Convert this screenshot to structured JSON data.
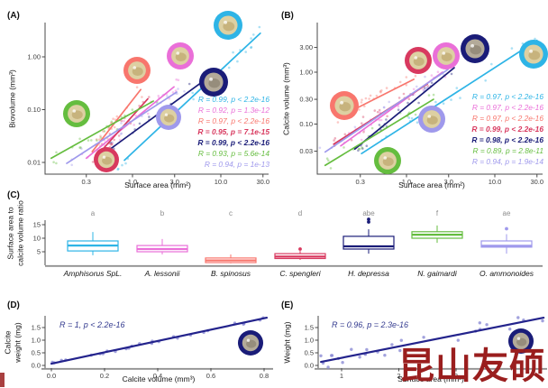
{
  "panel_labels": {
    "A": "(A)",
    "B": "(B)",
    "C": "(C)",
    "D": "(D)",
    "E": "(E)"
  },
  "watermark": {
    "text": "昆山友硕",
    "color": "#9a1e1e"
  },
  "palette": {
    "cyan": "#2eb4e6",
    "pink": "#ea6fd8",
    "salmon": "#f8766d",
    "red": "#d8395f",
    "navy": "#1a1c78",
    "green": "#65bd3f",
    "purple": "#9f99ec",
    "point_blue": "#8b8bd4",
    "fit_navy": "#23238c",
    "annotation": "#333a8f",
    "axis": "#4a4a4a",
    "baseline_gray": "#909090",
    "letter_gray": "#8c8c8c"
  },
  "chart_data": [
    {
      "id": "A",
      "type": "scatter",
      "xscale": "log",
      "yscale": "log",
      "xlabel": "Surface area (mm²)",
      "ylabel": "Biovolume (mm³)",
      "xticks": [
        "0.3",
        "1.0",
        "3.0",
        "10.0",
        "30.0"
      ],
      "yticks": [
        "1.00",
        "0.10",
        "0.01"
      ],
      "series": [
        {
          "species": "Amphisorus SpL.",
          "color_key": "cyan",
          "R": "0.99",
          "p": "p < 2.2e-16",
          "legend": "R = 0.99, p < 2.2e-16",
          "bold": false,
          "fit": {
            "x": [
              0.81,
              28.0
            ],
            "y": [
              0.011,
              2.8
            ]
          }
        },
        {
          "species": "A. lessonii",
          "color_key": "pink",
          "R": "0.92",
          "p": "p = 1.3e-12",
          "legend": "R = 0.92, p = 1.3e-12",
          "bold": false,
          "fit": {
            "x": [
              0.3,
              2.95
            ],
            "y": [
              0.012,
              0.27
            ]
          }
        },
        {
          "species": "B. spinosus",
          "color_key": "salmon",
          "R": "0.97",
          "p": "p < 2.2e-16",
          "legend": "R = 0.97, p < 2.2e-16",
          "bold": false,
          "fit": {
            "x": [
              0.35,
              1.24
            ],
            "y": [
              0.016,
              0.24
            ]
          }
        },
        {
          "species": "C. spengleri",
          "color_key": "red",
          "R": "0.95",
          "p": "p = 7.1e-15",
          "legend": "R = 0.95, p = 7.1e-15",
          "bold": true,
          "fit": {
            "x": [
              0.39,
              1.49
            ],
            "y": [
              0.013,
              0.16
            ]
          }
        },
        {
          "species": "H. depressa",
          "color_key": "navy",
          "R": "0.99",
          "p": "p < 2.2e-16",
          "legend": "R = 0.99, p < 2.2e-16",
          "bold": true,
          "fit": {
            "x": [
              0.51,
              7.4
            ],
            "y": [
              0.016,
              0.42
            ]
          }
        },
        {
          "species": "N. gaimardi",
          "color_key": "green",
          "R": "0.93",
          "p": "p = 5.6e-14",
          "legend": "R = 0.93, p = 5.6e-14",
          "bold": false,
          "fit": {
            "x": [
              0.12,
              1.72
            ],
            "y": [
              0.012,
              0.145
            ]
          }
        },
        {
          "species": "O. ammonoides",
          "color_key": "purple",
          "R": "0.94",
          "p": "p = 1e-13",
          "legend": "R = 0.94, p = 1e-13",
          "bold": false,
          "fit": {
            "x": [
              0.18,
              3.16
            ],
            "y": [
              0.0096,
              0.215
            ]
          }
        }
      ],
      "icons": [
        {
          "color_key": "green",
          "x": 85,
          "y": 126,
          "r": 15
        },
        {
          "color_key": "red",
          "x": 118,
          "y": 177,
          "r": 14
        },
        {
          "color_key": "salmon",
          "x": 152,
          "y": 78,
          "r": 15
        },
        {
          "color_key": "pink",
          "x": 200,
          "y": 62,
          "r": 15
        },
        {
          "color_key": "purple",
          "x": 187,
          "y": 130,
          "r": 14
        },
        {
          "color_key": "navy",
          "x": 237,
          "y": 91,
          "r": 16
        },
        {
          "color_key": "cyan",
          "x": 253,
          "y": 28,
          "r": 16
        }
      ]
    },
    {
      "id": "B",
      "type": "scatter",
      "xscale": "log",
      "yscale": "log",
      "xlabel": "Surface area (mm²)",
      "ylabel": "Calcite volume (mm³)",
      "xticks": [
        "0.3",
        "1.0",
        "3.0",
        "10.0",
        "30.0"
      ],
      "yticks": [
        "3.00",
        "1.00",
        "0.30",
        "0.10",
        "0.03"
      ],
      "series": [
        {
          "species": "Amphisorus SpL.",
          "color_key": "cyan",
          "R": "0.97",
          "p": "p < 2.2e-16",
          "legend": "R = 0.97, p < 2.2e-16",
          "bold": false,
          "fit": {
            "x": [
              0.31,
              30.0
            ],
            "y": [
              0.027,
              4.1
            ]
          }
        },
        {
          "species": "A. lessonii",
          "color_key": "pink",
          "R": "0.97",
          "p": "p < 2.2e-16",
          "legend": "R = 0.97, p < 2.2e-16",
          "bold": false,
          "fit": {
            "x": [
              0.18,
              2.56
            ],
            "y": [
              0.038,
              1.0
            ]
          }
        },
        {
          "species": "B. spinosus",
          "color_key": "salmon",
          "R": "0.97",
          "p": "p < 2.2e-16",
          "legend": "R = 0.97, p < 2.2e-16",
          "bold": false,
          "fit": {
            "x": [
              0.17,
              1.21
            ],
            "y": [
              0.135,
              0.73
            ]
          }
        },
        {
          "species": "C. spengleri",
          "color_key": "red",
          "R": "0.99",
          "p": "p < 2.2e-16",
          "legend": "R = 0.99, p < 2.2e-16",
          "bold": true,
          "fit": {
            "x": [
              0.15,
              1.72
            ],
            "y": [
              0.041,
              0.59
            ]
          }
        },
        {
          "species": "H. depressa",
          "color_key": "navy",
          "R": "0.98",
          "p": "p < 2.2e-16",
          "legend": "R = 0.98, p < 2.2e-16",
          "bold": true,
          "fit": {
            "x": [
              0.26,
              3.47
            ],
            "y": [
              0.033,
              1.22
            ]
          }
        },
        {
          "species": "N. gaimardi",
          "color_key": "green",
          "R": "0.89",
          "p": "p = 2.8e-11",
          "legend": "R = 0.89, p = 2.8e-11",
          "bold": false,
          "fit": {
            "x": [
              0.12,
              2.02
            ],
            "y": [
              0.016,
              0.3
            ]
          }
        },
        {
          "species": "O. ammonoides",
          "color_key": "purple",
          "R": "0.94",
          "p": "p = 1.9e-14",
          "legend": "R = 0.94, p = 1.9e-14",
          "bold": false,
          "fit": {
            "x": [
              0.12,
              2.95
            ],
            "y": [
              0.029,
              1.13
            ]
          }
        }
      ],
      "icons": [
        {
          "color_key": "salmon",
          "x": 382,
          "y": 117,
          "r": 16
        },
        {
          "color_key": "green",
          "x": 430,
          "y": 178,
          "r": 15
        },
        {
          "color_key": "red",
          "x": 464,
          "y": 67,
          "r": 15
        },
        {
          "color_key": "purple",
          "x": 479,
          "y": 132,
          "r": 15
        },
        {
          "color_key": "pink",
          "x": 495,
          "y": 62,
          "r": 15
        },
        {
          "color_key": "navy",
          "x": 527,
          "y": 54,
          "r": 16
        },
        {
          "color_key": "cyan",
          "x": 592,
          "y": 60,
          "r": 16
        }
      ]
    },
    {
      "id": "C",
      "type": "boxplot",
      "ylabel": "Surface area to calcite volume ratio",
      "ylabel_lines": [
        "Surface area to",
        "calcite volume ratio"
      ],
      "yticks": [
        "5",
        "10",
        "15"
      ],
      "groups": [
        {
          "species": "Amphisorus SpL.",
          "letter": "a",
          "color_key": "cyan",
          "whisker_low": 3.7,
          "q1": 5.3,
          "median": 7.3,
          "q3": 9.0,
          "whisker_high": 12.3,
          "outliers": []
        },
        {
          "species": "A. lessonii",
          "letter": "b",
          "color_key": "pink",
          "whisker_low": 4.0,
          "q1": 5.0,
          "median": 6.0,
          "q3": 7.3,
          "whisker_high": 9.7,
          "outliers": []
        },
        {
          "species": "B. spinosus",
          "letter": "c",
          "color_key": "salmon",
          "whisker_low": 0.7,
          "q1": 1.0,
          "median": 1.8,
          "q3": 2.7,
          "whisker_high": 4.0,
          "outliers": []
        },
        {
          "species": "C. spengleri",
          "letter": "d",
          "color_key": "red",
          "whisker_low": 2.0,
          "q1": 2.5,
          "median": 3.2,
          "q3": 4.3,
          "whisker_high": 5.3,
          "outliers": [
            6.0
          ]
        },
        {
          "species": "H. depressa",
          "letter": "abe",
          "color_key": "navy",
          "whisker_low": 4.3,
          "q1": 6.0,
          "median": 7.0,
          "q3": 10.7,
          "whisker_high": 13.3,
          "outliers": [
            16.0,
            17.0
          ]
        },
        {
          "species": "N. gaimardi",
          "letter": "f",
          "color_key": "green",
          "whisker_low": 8.3,
          "q1": 10.0,
          "median": 11.3,
          "q3": 12.4,
          "whisker_high": 14.7,
          "outliers": []
        },
        {
          "species": "O. ammonoides",
          "letter": "ae",
          "color_key": "purple",
          "whisker_low": 4.3,
          "q1": 6.7,
          "median": 7.2,
          "q3": 9.0,
          "whisker_high": 11.5,
          "outliers": [
            13.5
          ]
        }
      ]
    },
    {
      "id": "D",
      "type": "scatter",
      "xlabel": "Calcite volume (mm³)",
      "ylabel": "Calcite weight (mg)",
      "ylabel_lines": [
        "Calcite",
        "weight (mg)"
      ],
      "xticks": [
        "0.0",
        "0.2",
        "0.4",
        "0.6",
        "0.8"
      ],
      "yticks": [
        "0.0",
        "0.5",
        "1.0",
        "1.5"
      ],
      "annotation": "R = 1, p < 2.2e-16",
      "R": "1",
      "p": "p < 2.2e-16",
      "fit": {
        "x": [
          0.0,
          0.81
        ],
        "y": [
          0.07,
          1.89
        ]
      }
    },
    {
      "id": "E",
      "type": "scatter",
      "xlabel": "Surface area (mm²)",
      "ylabel": "Weight (mg)",
      "xticks": [
        "1",
        "2",
        "3"
      ],
      "yticks": [
        "0.0",
        "0.5",
        "1.0",
        "1.5"
      ],
      "annotation": "R = 0.96, p = 2.3e-16",
      "R": "0.96",
      "p": "p = 2.3e-16",
      "fit": {
        "x": [
          0.64,
          4.53
        ],
        "y": [
          0.14,
          1.89
        ]
      }
    }
  ]
}
